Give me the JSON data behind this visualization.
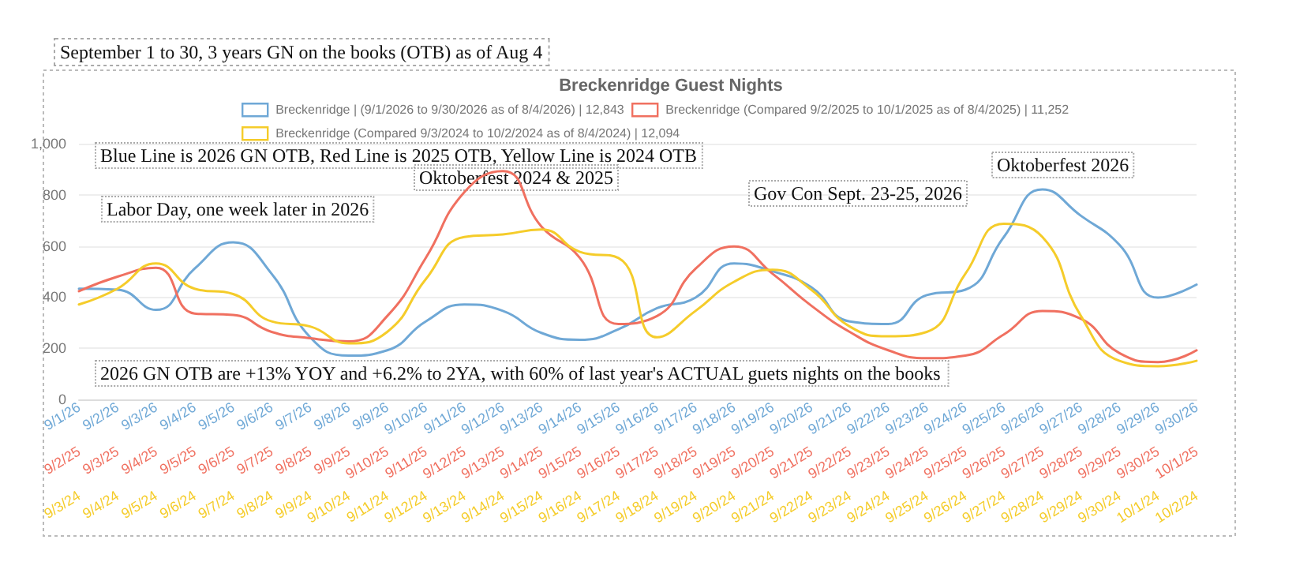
{
  "chart_data": [
    {
      "type": "line",
      "title": "Breckenridge Guest Nights",
      "subtitle": "September 1 to 30, 3 years GN on the books (OTB) as of Aug 4",
      "categories": [
        "9/1/26",
        "9/2/26",
        "9/3/26",
        "9/4/26",
        "9/5/26",
        "9/6/26",
        "9/7/26",
        "9/8/26",
        "9/9/26",
        "9/10/26",
        "9/11/26",
        "9/12/26",
        "9/13/26",
        "9/14/26",
        "9/15/26",
        "9/16/26",
        "9/17/26",
        "9/18/26",
        "9/19/26",
        "9/20/26",
        "9/21/26",
        "9/22/26",
        "9/23/26",
        "9/24/26",
        "9/25/26",
        "9/26/26",
        "9/27/26",
        "9/28/26",
        "9/29/26",
        "9/30/26"
      ],
      "series": [
        {
          "name": "Breckenridge | (9/1/2026 to 9/30/2026 as of 8/4/2026) | 12,843",
          "color": "#6fa8d6",
          "values": [
            433,
            429,
            350,
            511,
            614,
            491,
            243,
            171,
            192,
            305,
            371,
            346,
            260,
            233,
            274,
            357,
            398,
            532,
            501,
            439,
            305,
            295,
            408,
            429,
            635,
            821,
            718,
            604,
            398,
            449
          ]
        }
      ],
      "ylim": [
        0,
        1000
      ],
      "yticks": [
        0,
        200,
        400,
        600,
        800,
        {
          "value": 1000,
          "label": "1,000"
        }
      ],
      "grid": "y",
      "legend": "top",
      "marker": "none",
      "line_style": "solid",
      "annotations": [
        "Blue Line is 2026 GN OTB, Red Line is 2025 OTB, Yellow Line is 2024 OTB",
        "Labor Day, one week later in 2026",
        "Oktoberfest 2024 & 2025",
        "Gov Con Sept. 23-25, 2026",
        "Oktoberfest 2026",
        "2026 GN OTB are +13% YOY and +6.2% to 2YA, with 60% of last year's ACTUAL guets nights on the books"
      ]
    },
    {
      "type": "line",
      "categories": [
        "9/2/25",
        "9/3/25",
        "9/4/25",
        "9/5/25",
        "9/6/25",
        "9/7/25",
        "9/8/25",
        "9/9/25",
        "9/10/25",
        "9/11/25",
        "9/12/25",
        "9/13/25",
        "9/14/25",
        "9/15/25",
        "9/16/25",
        "9/17/25",
        "9/18/25",
        "9/19/25",
        "9/20/25",
        "9/21/25",
        "9/22/25",
        "9/23/25",
        "9/24/25",
        "9/25/25",
        "9/26/25",
        "9/27/25",
        "9/28/25",
        "9/29/25",
        "9/30/25",
        "10/1/25"
      ],
      "series": [
        {
          "name": "Breckenridge (Compared 9/2/2025 to 10/1/2025 as of 8/4/2025) | 11,252",
          "color": "#f07060",
          "values": [
            423,
            480,
            515,
            336,
            330,
            264,
            239,
            227,
            326,
            553,
            810,
            893,
            676,
            553,
            295,
            326,
            511,
            598,
            491,
            367,
            264,
            192,
            161,
            171,
            254,
            346,
            315,
            181,
            146,
            192
          ]
        }
      ],
      "ylim": [
        0,
        1000
      ],
      "tick_labels": "x",
      "legend": "top",
      "marker": "none",
      "line_style": "solid"
    },
    {
      "type": "line",
      "categories": [
        "9/3/24",
        "9/4/24",
        "9/5/24",
        "9/6/24",
        "9/7/24",
        "9/8/24",
        "9/9/24",
        "9/10/24",
        "9/11/24",
        "9/12/24",
        "9/13/24",
        "9/14/24",
        "9/15/24",
        "9/16/24",
        "9/17/24",
        "9/18/24",
        "9/19/24",
        "9/20/24",
        "9/21/24",
        "9/22/24",
        "9/23/24",
        "9/24/24",
        "9/25/24",
        "9/26/24",
        "9/27/24",
        "9/28/24",
        "9/29/24",
        "9/30/24",
        "10/1/24",
        "10/2/24"
      ],
      "series": [
        {
          "name": "Breckenridge (Compared 9/3/2024 to 10/2/2024 as of 8/4/2024) | 12,094",
          "color": "#f5cc2a",
          "values": [
            371,
            433,
            532,
            433,
            412,
            305,
            285,
            219,
            264,
            470,
            635,
            645,
            664,
            577,
            553,
            243,
            346,
            460,
            507,
            429,
            285,
            247,
            264,
            491,
            687,
            635,
            326,
            151,
            130,
            151
          ]
        }
      ],
      "ylim": [
        0,
        1000
      ],
      "tick_labels": "x",
      "legend": "top",
      "marker": "none",
      "line_style": "solid"
    }
  ]
}
